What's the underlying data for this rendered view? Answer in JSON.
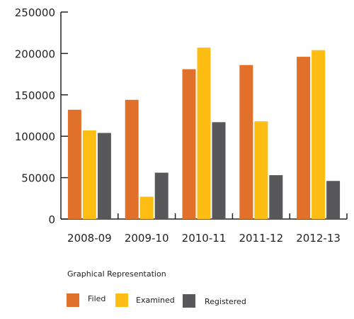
{
  "chart_data": {
    "type": "bar",
    "categories": [
      "2008-09",
      "2009-10",
      "2010-11",
      "2011-12",
      "2012-13"
    ],
    "series": [
      {
        "name": "Filed",
        "color": "#e0702a",
        "values": [
          132000,
          144000,
          181000,
          186000,
          196000
        ]
      },
      {
        "name": "Examined",
        "color": "#fdbd12",
        "values": [
          107000,
          27000,
          207000,
          118000,
          204000
        ]
      },
      {
        "name": "Registered",
        "color": "#58585a",
        "values": [
          104000,
          56000,
          117000,
          53000,
          46000
        ]
      }
    ],
    "yticks": [
      "0",
      "50000",
      "100000",
      "150000",
      "200000",
      "250000"
    ],
    "ylim": [
      0,
      250000
    ],
    "title": "",
    "xlabel": "",
    "ylabel": "",
    "grid": false,
    "legend_position": "bottom-left"
  },
  "legend": {
    "title": "Graphical Representation",
    "items": [
      {
        "label": "Filed",
        "color": "#e0702a"
      },
      {
        "label": "Examined",
        "color": "#fdbd12"
      },
      {
        "label": "Registered",
        "color": "#58585a"
      }
    ]
  }
}
